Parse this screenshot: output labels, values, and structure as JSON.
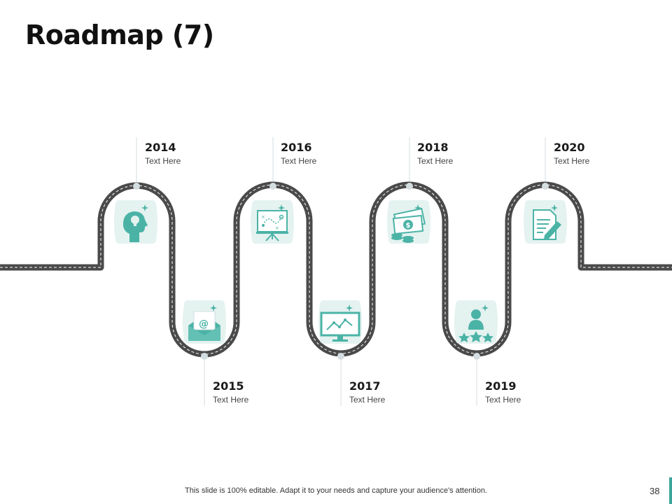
{
  "title": "Roadmap (7)",
  "milestones": [
    {
      "year": "2014",
      "text": "Text Here",
      "icon": "idea-head-icon"
    },
    {
      "year": "2015",
      "text": "Text Here",
      "icon": "email-icon"
    },
    {
      "year": "2016",
      "text": "Text Here",
      "icon": "strategy-board-icon"
    },
    {
      "year": "2017",
      "text": "Text Here",
      "icon": "analytics-monitor-icon"
    },
    {
      "year": "2018",
      "text": "Text Here",
      "icon": "money-icon"
    },
    {
      "year": "2019",
      "text": "Text Here",
      "icon": "user-rating-icon"
    },
    {
      "year": "2020",
      "text": "Text Here",
      "icon": "document-edit-icon"
    }
  ],
  "footer": {
    "note": "This slide is 100% editable. Adapt it to your needs and capture your audience's attention.",
    "page_number": "38"
  },
  "colors": {
    "road": "#4a4a4a",
    "road_marking": "#ffffff",
    "icon_tile": "#e4f2f0",
    "icon": "#4bb3a6",
    "connector": "#d4dee0",
    "accent": "#3aa598"
  }
}
